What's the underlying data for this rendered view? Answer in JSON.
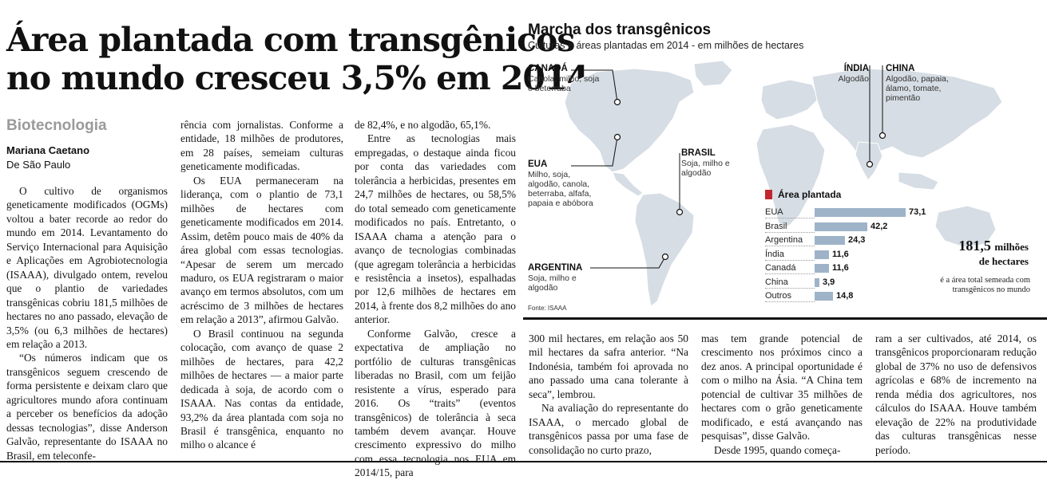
{
  "article": {
    "headline": [
      "Área plantada com transgênicos",
      "no mundo cresceu 3,5% em 2014"
    ],
    "section": "Biotecnologia",
    "author": "Mariana Caetano",
    "dateline": "De São Paulo",
    "columns": [
      [
        {
          "text": "O cultivo de organismos geneticamente modificados (OGMs) voltou a bater recorde ao redor do mundo em 2014. Levantamento do Serviço Internacional para Aquisição e Aplicações em Agrobiotecnologia (ISAAA), divulgado ontem, revelou que o plantio de variedades transgênicas cobriu 181,5 milhões de hectares no ano passado, elevação de 3,5% (ou 6,3 milhões de hectares) em relação a 2013."
        },
        {
          "text": "“Os números indicam que os transgênicos seguem crescendo de forma persistente e deixam claro que agricultores mundo afora continuam a perceber os benefícios da adoção dessas tecnologias”, disse Anderson Galvão, representante do ISAAA no Brasil, em teleconfe-"
        }
      ],
      [
        {
          "text": "rência com jornalistas. Conforme a entidade, 18 milhões de produtores, em 28 países, semeiam culturas geneticamente modificadas.",
          "cont": true
        },
        {
          "text": "Os EUA permaneceram na liderança, com o plantio de 73,1 milhões de hectares com geneticamente modificados em 2014. Assim, detêm pouco mais de 40% da área global com essas tecnologias. “Apesar de serem um mercado maduro, os EUA registraram o maior avanço em termos absolutos, com um acréscimo de 3 milhões de hectares em relação a 2013”, afirmou Galvão."
        },
        {
          "text": "O Brasil continuou na segunda colocação, com avanço de quase 2 milhões de hectares, para 42,2 milhões de hectares — a maior parte dedicada à soja, de acordo com o ISAAA. Nas contas da entidade, 93,2% da área plantada com soja no Brasil é transgênica, enquanto no milho o alcance é"
        }
      ],
      [
        {
          "text": "de 82,4%, e no algodão, 65,1%.",
          "cont": true
        },
        {
          "text": "Entre as tecnologias mais empregadas, o destaque ainda ficou por conta das variedades com tolerância a herbicidas, presentes em 24,7 milhões de hectares, ou 58,5% do total semeado com geneticamente modificados no país. Entretanto, o ISAAA chama a atenção para o avanço de tecnologias combinadas (que agregam tolerância a herbicidas e resistência a insetos), espalhadas por 12,6 milhões de hectares em 2014, à frente dos 8,2 milhões do ano anterior."
        },
        {
          "text": "Conforme Galvão, cresce a expectativa de ampliação no portfólio de culturas transgênicas liberadas no Brasil, com um feijão resistente a vírus, esperado para 2016. Os “traits” (eventos transgênicos) de tolerância à seca também devem avançar. Houve crescimento expressivo do milho com essa tecnologia nos EUA em 2014/15, para"
        }
      ],
      [
        {
          "text": "300 mil hectares, em relação aos 50 mil hectares da safra anterior. “Na Indonésia, também foi aprovada no ano passado uma cana tolerante à seca”, lembrou.",
          "cont": true
        },
        {
          "text": "Na avaliação do representante do ISAAA, o mercado global de transgênicos passa por uma fase de consolidação no curto prazo,"
        }
      ],
      [
        {
          "text": "mas tem grande potencial de crescimento nos próximos cinco a dez anos. A principal oportunidade é com o milho na Ásia. “A China tem potencial de cultivar 35 milhões de hectares com o grão geneticamente modificado, e está avançando nas pesquisas”, disse Galvão.",
          "cont": true
        },
        {
          "text": "Desde 1995, quando começa-"
        }
      ],
      [
        {
          "text": "ram a ser cultivados, até 2014, os transgênicos proporcionaram redução global de 37% no uso de defensivos agrícolas e 68% de incremento na renda média dos agricultores, nos cálculos do ISAAA. Houve também elevação de 22% na produtividade das culturas transgênicas nesse período.",
          "cont": true
        }
      ]
    ]
  },
  "infographic": {
    "title": "Marcha dos transgênicos",
    "subtitle": "Culturas e áreas plantadas em 2014 - em milhões de hectares",
    "source": "Fonte: ISAAA",
    "countries": [
      {
        "name": "CANADÁ",
        "crops": "Canola, milho, soja e beterraba"
      },
      {
        "name": "EUA",
        "crops": "Milho, soja, algodão, canola, beterraba, alfafa, papaia e abóbora"
      },
      {
        "name": "BRASIL",
        "crops": "Soja, milho e algodão"
      },
      {
        "name": "ARGENTINA",
        "crops": "Soja, milho e algodão"
      },
      {
        "name": "ÍNDIA",
        "crops": "Algodão"
      },
      {
        "name": "CHINA",
        "crops": "Algodão, papaia, álamo, tomate, pimentão"
      }
    ],
    "legend_label": "Área plantada",
    "total_value": "181,5",
    "total_unit_inline": "milhões",
    "total_unit_line": "de hectares",
    "total_desc": "é a área total semeada com transgênicos no mundo",
    "colors": {
      "bar": "#9eb3c8",
      "legend": "#c1272d",
      "map_land": "#d6dde4",
      "map_sea": "#ffffff"
    }
  },
  "chart_data": {
    "type": "bar",
    "orientation": "horizontal",
    "title": "",
    "categories": [
      "EUA",
      "Brasil",
      "Argentina",
      "Índia",
      "Canadá",
      "China",
      "Outros"
    ],
    "values": [
      73.1,
      42.2,
      24.3,
      11.6,
      11.6,
      3.9,
      14.8
    ],
    "value_labels": [
      "73,1",
      "42,2",
      "24,3",
      "11,6",
      "11,6",
      "3,9",
      "14,8"
    ],
    "series": [
      {
        "name": "Área plantada",
        "values": [
          73.1,
          42.2,
          24.3,
          11.6,
          11.6,
          3.9,
          14.8
        ]
      }
    ],
    "xlim": [
      0,
      73.1
    ],
    "grid": false
  }
}
